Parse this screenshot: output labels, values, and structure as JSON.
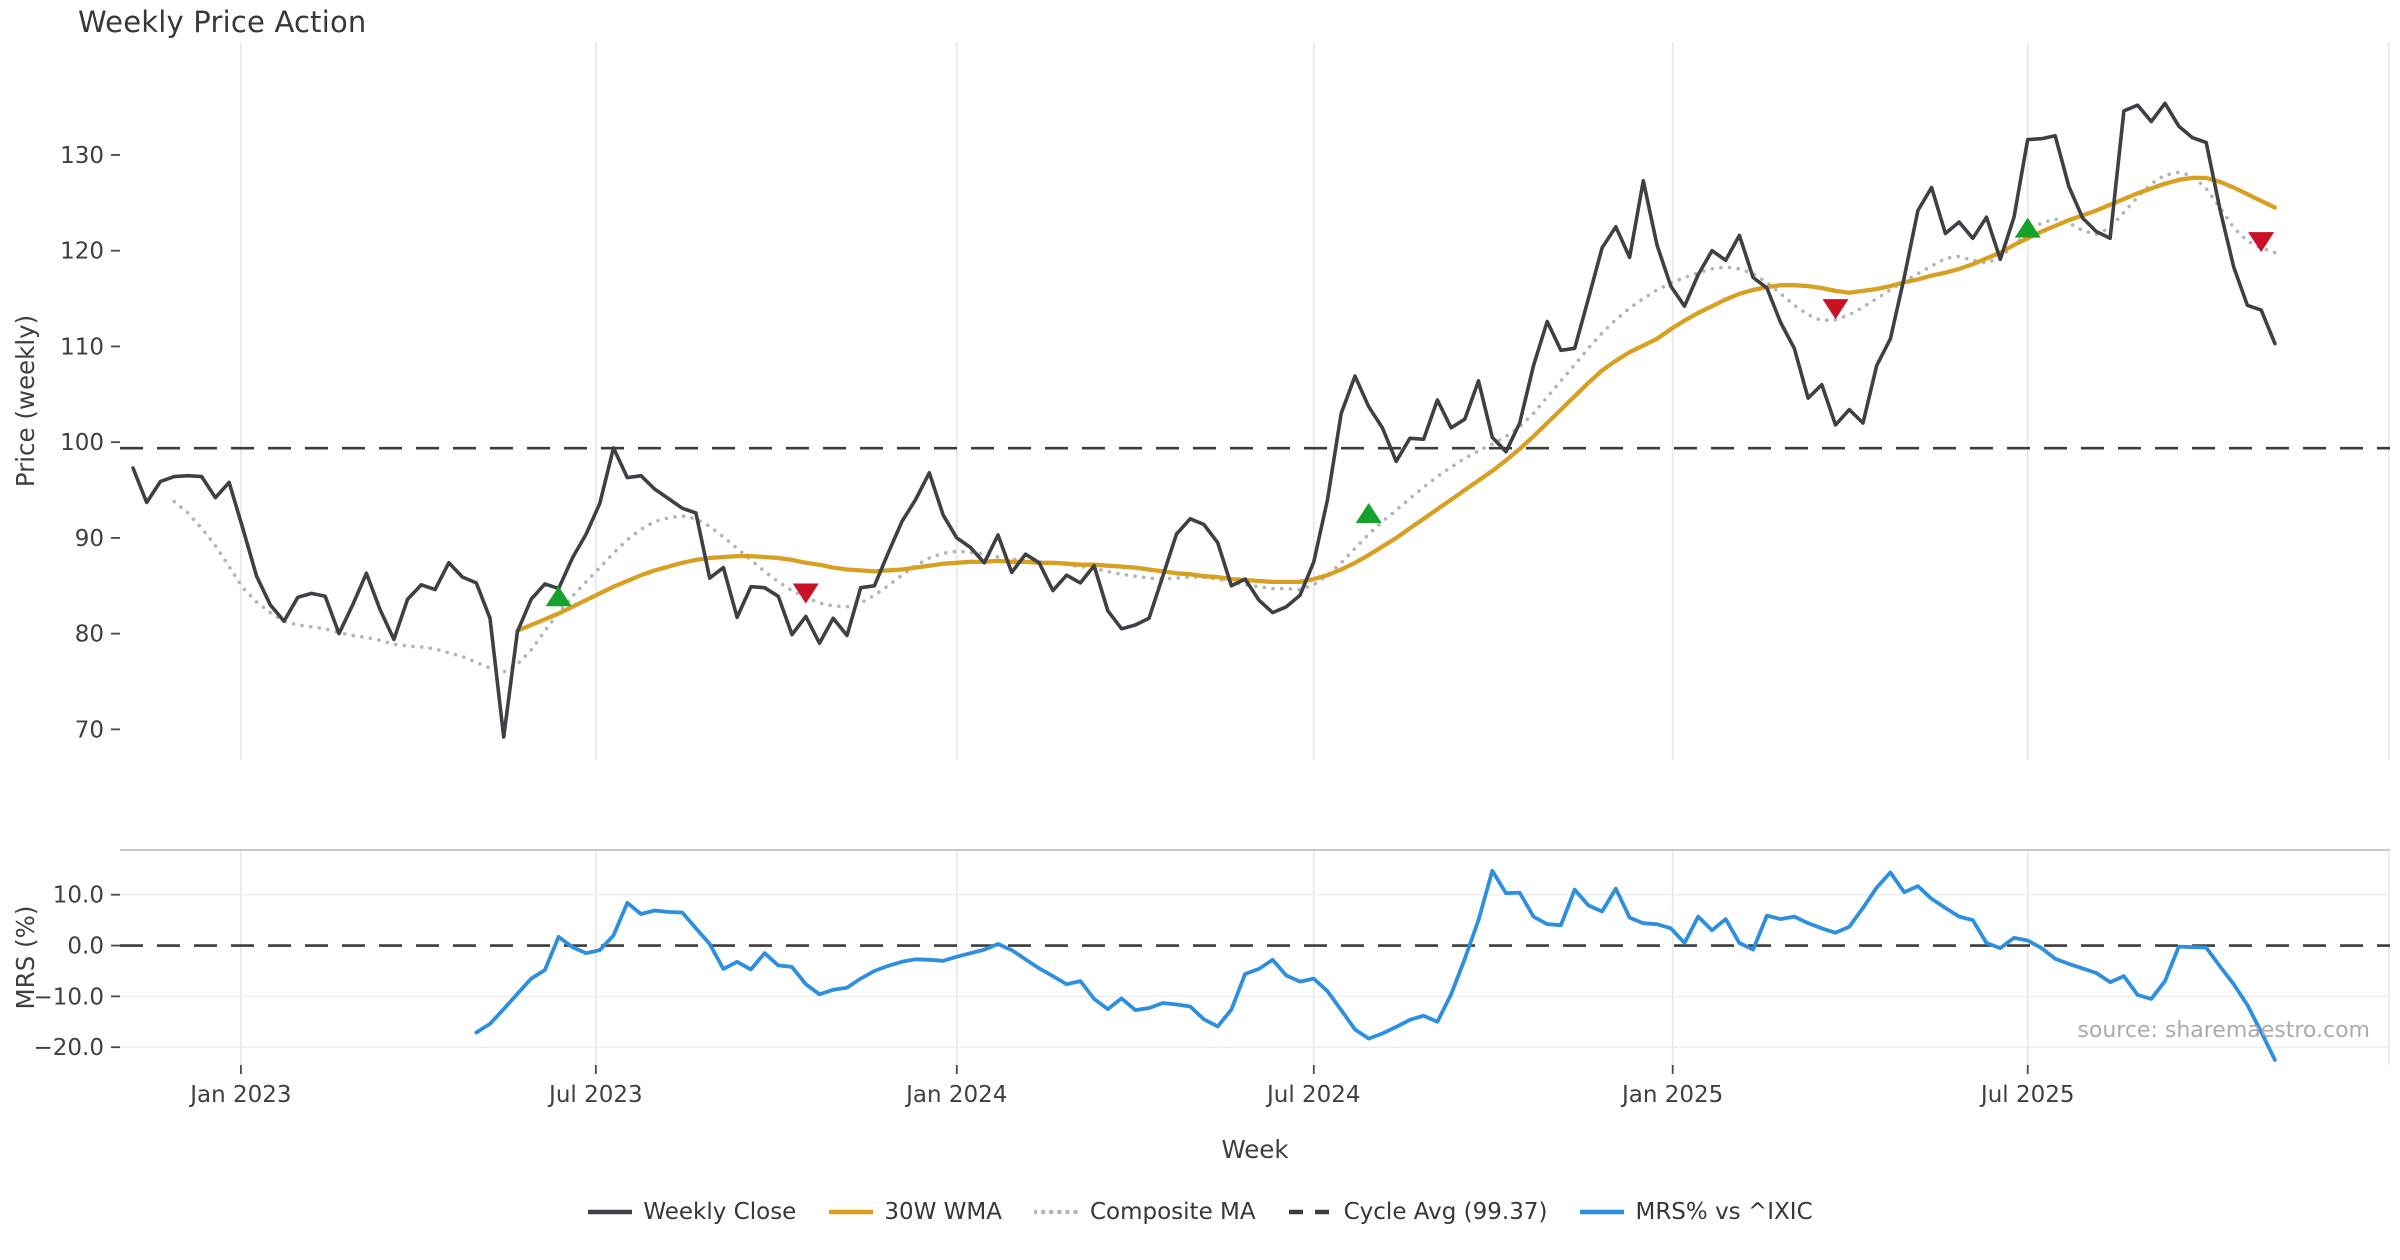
{
  "title": "Weekly Price Action",
  "source_note": "source: sharemaestro.com",
  "colors": {
    "close": "#3d4045",
    "wma": "#d7a022",
    "composite": "#b5b5b5",
    "cycle_avg": "#3d3d3d",
    "mrs": "#2e8fde",
    "buy_marker": "#15a22c",
    "sell_marker": "#cb1126",
    "grid": "#e7e7e7",
    "grid_h": "#ededed",
    "spine": "#c9c9c9",
    "tick_text": "#3f3f3f",
    "title_text": "#383838",
    "source_text": "#ababab"
  },
  "chart_data": {
    "type": "line",
    "x": {
      "start_date": "2022-11-07",
      "frequency": "weekly",
      "num_weeks": 157
    },
    "xlabel": "Week",
    "xticks": [
      {
        "label": "Jan 2023",
        "week": 7.86
      },
      {
        "label": "Jul 2023",
        "week": 33.71
      },
      {
        "label": "Jan 2024",
        "week": 60.0
      },
      {
        "label": "Jul 2024",
        "week": 86.0
      },
      {
        "label": "Jan 2025",
        "week": 112.14
      },
      {
        "label": "Jul 2025",
        "week": 138.0
      },
      {
        "label": "",
        "week": 164.3
      }
    ],
    "legend": [
      {
        "label": "Weekly Close",
        "style": "solid",
        "color_key": "close"
      },
      {
        "label": "30W WMA",
        "style": "solid",
        "color_key": "wma"
      },
      {
        "label": "Composite MA",
        "style": "dotted",
        "color_key": "composite"
      },
      {
        "label": "Cycle Avg (99.37)",
        "style": "dashed",
        "color_key": "cycle_avg"
      },
      {
        "label": "MRS% vs ^IXIC",
        "style": "solid",
        "color_key": "mrs"
      }
    ],
    "panels": [
      {
        "name": "price",
        "ylabel": "Price (weekly)",
        "yticks": [
          70,
          80,
          90,
          100,
          110,
          120,
          130
        ],
        "ytick_labels": [
          "70",
          "80",
          "90",
          "100",
          "110",
          "120",
          "130"
        ],
        "ylim": [
          66.8,
          141.8
        ],
        "reference_line": {
          "name": "Cycle Avg",
          "value": 99.37
        },
        "grid_horizontal": false,
        "series": [
          {
            "name": "Weekly Close",
            "color_key": "close",
            "style": "solid",
            "values": [
              97.3,
              93.7,
              95.9,
              96.4,
              96.5,
              96.4,
              94.2,
              95.8,
              91.0,
              86.0,
              83.0,
              81.3,
              83.8,
              84.2,
              83.9,
              80.0,
              83.0,
              86.3,
              82.5,
              79.4,
              83.6,
              85.1,
              84.6,
              87.4,
              85.9,
              85.3,
              81.6,
              69.2,
              80.2,
              83.6,
              85.2,
              84.7,
              87.9,
              90.4,
              93.6,
              99.4,
              96.3,
              96.5,
              95.1,
              94.1,
              93.1,
              92.6,
              85.8,
              86.9,
              81.7,
              84.9,
              84.8,
              83.9,
              79.9,
              81.8,
              79.0,
              81.6,
              79.8,
              84.8,
              85.0,
              88.4,
              91.7,
              94.0,
              96.8,
              92.4,
              90.0,
              89.0,
              87.4,
              90.3,
              86.4,
              88.3,
              87.4,
              84.5,
              86.1,
              85.3,
              87.1,
              82.4,
              80.5,
              80.9,
              81.6,
              86.0,
              90.4,
              92.0,
              91.4,
              89.5,
              85.0,
              85.7,
              83.5,
              82.2,
              82.8,
              84.0,
              87.5,
              94.0,
              103.0,
              106.9,
              103.7,
              101.5,
              98.0,
              100.4,
              100.3,
              104.4,
              101.5,
              102.4,
              106.4,
              100.5,
              99.0,
              102.0,
              108.0,
              112.6,
              109.6,
              109.8,
              115.0,
              120.3,
              122.5,
              119.3,
              127.3,
              120.6,
              116.3,
              114.2,
              117.5,
              120.0,
              119.0,
              121.6,
              117.2,
              116.1,
              112.5,
              109.8,
              104.6,
              106.0,
              101.8,
              103.4,
              102.0,
              108.0,
              110.8,
              117.2,
              124.2,
              126.6,
              121.8,
              123.0,
              121.3,
              123.5,
              119.1,
              123.5,
              131.6,
              131.7,
              132.0,
              126.7,
              123.4,
              122.0,
              121.3,
              134.6,
              135.2,
              133.5,
              135.4,
              133.0,
              131.8,
              131.3,
              124.3,
              118.3,
              114.3,
              113.8,
              110.3
            ]
          },
          {
            "name": "30W WMA",
            "color_key": "wma",
            "style": "solid",
            "values": [
              null,
              null,
              null,
              null,
              null,
              null,
              null,
              null,
              null,
              null,
              null,
              null,
              null,
              null,
              null,
              null,
              null,
              null,
              null,
              null,
              null,
              null,
              null,
              null,
              null,
              null,
              null,
              null,
              80.3,
              80.9,
              81.5,
              82.1,
              82.8,
              83.5,
              84.2,
              84.9,
              85.5,
              86.1,
              86.6,
              87.0,
              87.4,
              87.7,
              87.9,
              88.0,
              88.1,
              88.1,
              88.0,
              87.9,
              87.7,
              87.4,
              87.2,
              86.9,
              86.7,
              86.6,
              86.5,
              86.6,
              86.7,
              86.9,
              87.1,
              87.3,
              87.4,
              87.5,
              87.5,
              87.6,
              87.5,
              87.5,
              87.4,
              87.4,
              87.3,
              87.2,
              87.2,
              87.1,
              87.0,
              86.9,
              86.7,
              86.5,
              86.3,
              86.2,
              86.0,
              85.9,
              85.7,
              85.6,
              85.5,
              85.4,
              85.4,
              85.4,
              85.7,
              86.1,
              86.7,
              87.4,
              88.2,
              89.1,
              90.0,
              91.0,
              92.0,
              93.0,
              94.0,
              95.0,
              96.0,
              97.0,
              98.1,
              99.3,
              100.6,
              102.0,
              103.4,
              104.8,
              106.2,
              107.5,
              108.5,
              109.4,
              110.1,
              110.8,
              111.8,
              112.7,
              113.5,
              114.2,
              114.9,
              115.5,
              115.9,
              116.2,
              116.4,
              116.4,
              116.3,
              116.1,
              115.8,
              115.6,
              115.8,
              116.0,
              116.3,
              116.7,
              117.0,
              117.4,
              117.7,
              118.1,
              118.6,
              119.2,
              119.8,
              120.6,
              121.3,
              122.0,
              122.6,
              123.2,
              123.7,
              124.2,
              124.8,
              125.4,
              126.0,
              126.5,
              127.0,
              127.4,
              127.6,
              127.6,
              127.2,
              126.6,
              125.9,
              125.2,
              124.5
            ]
          },
          {
            "name": "Composite MA",
            "color_key": "composite",
            "style": "dotted",
            "values": [
              null,
              null,
              null,
              93.8,
              92.6,
              91.0,
              89.2,
              87.0,
              84.8,
              83.3,
              82.2,
              81.3,
              80.9,
              80.7,
              80.5,
              80.1,
              79.8,
              79.6,
              79.3,
              78.9,
              78.7,
              78.6,
              78.4,
              78.0,
              77.6,
              77.0,
              76.4,
              76.0,
              76.8,
              78.3,
              80.3,
              82.2,
              83.9,
              85.4,
              86.9,
              88.4,
              89.8,
              90.9,
              91.7,
              92.1,
              92.3,
              92.0,
              91.2,
              90.1,
              88.9,
              87.7,
              86.5,
              85.4,
              84.5,
              83.8,
              83.2,
              82.9,
              82.8,
              83.2,
              84.0,
              85.0,
              86.1,
              87.1,
              87.9,
              88.4,
              88.6,
              88.5,
              88.3,
              88.0,
              87.8,
              87.6,
              87.5,
              87.4,
              87.2,
              87.0,
              86.8,
              86.5,
              86.2,
              86.0,
              85.8,
              85.7,
              85.8,
              85.9,
              85.9,
              85.7,
              85.4,
              85.1,
              84.9,
              84.7,
              84.7,
              84.6,
              85.1,
              86.1,
              87.4,
              88.9,
              90.4,
              91.7,
              92.9,
              94.1,
              95.3,
              96.4,
              97.4,
              98.3,
              99.1,
              99.8,
              100.6,
              101.6,
              103.0,
              104.7,
              106.4,
              108.1,
              109.8,
              111.4,
              112.8,
              114.0,
              115.0,
              115.9,
              116.6,
              117.2,
              117.7,
              118.1,
              118.3,
              118.1,
              117.6,
              116.7,
              115.5,
              114.3,
              113.3,
              112.7,
              112.8,
              113.3,
              114.1,
              115.0,
              115.9,
              116.8,
              117.6,
              118.4,
              119.2,
              119.4,
              119.0,
              118.7,
              119.3,
              120.6,
              121.9,
              122.9,
              123.3,
              122.9,
              122.1,
              121.7,
              122.4,
              124.0,
              125.6,
              127.0,
              127.9,
              128.2,
              127.8,
              126.5,
              124.5,
              122.4,
              121.0,
              120.3,
              119.8
            ]
          }
        ],
        "signals": [
          {
            "week": 31,
            "value": 83.8,
            "type": "buy"
          },
          {
            "week": 49,
            "value": 84.3,
            "type": "sell"
          },
          {
            "week": 90,
            "value": 92.5,
            "type": "buy"
          },
          {
            "week": 124,
            "value": 114.0,
            "type": "sell"
          },
          {
            "week": 138,
            "value": 122.3,
            "type": "buy"
          },
          {
            "week": 155,
            "value": 121.0,
            "type": "sell"
          }
        ]
      },
      {
        "name": "mrs",
        "ylabel": "MRS (%)",
        "yticks": [
          10,
          0,
          -10,
          -20
        ],
        "ytick_labels": [
          "10.0",
          "0.0",
          "−10.0",
          "−20.0"
        ],
        "ylim": [
          -23.5,
          18.8
        ],
        "reference_line": {
          "name": "Zero",
          "value": 0
        },
        "grid_horizontal": true,
        "series": [
          {
            "name": "MRS% vs ^IXIC",
            "color_key": "mrs",
            "style": "solid",
            "values": [
              null,
              null,
              null,
              null,
              null,
              null,
              null,
              null,
              null,
              null,
              null,
              null,
              null,
              null,
              null,
              null,
              null,
              null,
              null,
              null,
              null,
              null,
              null,
              null,
              null,
              -17.1,
              -15.4,
              -12.5,
              -9.5,
              -6.5,
              -4.8,
              1.7,
              -0.3,
              -1.5,
              -0.9,
              2.0,
              8.4,
              6.2,
              6.9,
              6.6,
              6.5,
              3.4,
              0.3,
              -4.6,
              -3.2,
              -4.7,
              -1.5,
              -3.9,
              -4.2,
              -7.6,
              -9.6,
              -8.7,
              -8.3,
              -6.5,
              -5.0,
              -4.0,
              -3.2,
              -2.7,
              -2.8,
              -3.0,
              -2.2,
              -1.5,
              -0.8,
              0.3,
              -0.9,
              -2.7,
              -4.5,
              -6.0,
              -7.6,
              -7.0,
              -10.5,
              -12.5,
              -10.4,
              -12.7,
              -12.3,
              -11.3,
              -11.6,
              -12.0,
              -14.5,
              -15.9,
              -12.6,
              -5.6,
              -4.6,
              -2.8,
              -5.9,
              -7.1,
              -6.5,
              -9.0,
              -12.7,
              -16.5,
              -18.3,
              -17.3,
              -16.0,
              -14.6,
              -13.8,
              -15.0,
              -9.6,
              -2.6,
              5.0,
              14.7,
              10.3,
              10.4,
              5.7,
              4.2,
              4.0,
              11.0,
              7.9,
              6.7,
              11.2,
              5.5,
              4.4,
              4.2,
              3.4,
              0.5,
              5.7,
              3.0,
              5.2,
              0.5,
              -0.8,
              5.9,
              5.2,
              5.7,
              4.4,
              3.4,
              2.5,
              3.7,
              7.4,
              11.4,
              14.4,
              10.5,
              11.7,
              9.2,
              7.4,
              5.7,
              5.0,
              0.5,
              -0.5,
              1.5,
              1.0,
              -0.5,
              -2.6,
              -3.6,
              -4.5,
              -5.4,
              -7.2,
              -6.0,
              -9.7,
              -10.5,
              -7.0,
              -0.2,
              -0.3,
              -0.4,
              -4.1,
              -7.6,
              -11.7,
              -17.0,
              -22.5
            ]
          }
        ]
      }
    ]
  }
}
